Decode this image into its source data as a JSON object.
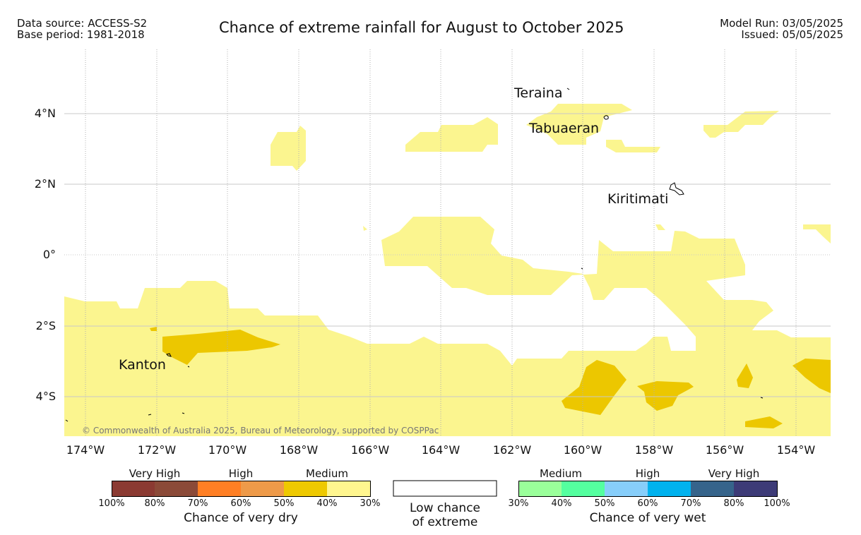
{
  "header": {
    "data_source": "Data source: ACCESS-S2",
    "base_period": "Base period: 1981-2018",
    "title": "Chance of extreme rainfall for August to October 2025",
    "model_run": "Model Run: 03/05/2025",
    "issued": "Issued: 05/05/2025"
  },
  "axes": {
    "y_labels": [
      "4°N",
      "2°N",
      "0°",
      "2°S",
      "4°S"
    ],
    "x_labels": [
      "174°W",
      "172°W",
      "170°W",
      "168°W",
      "166°W",
      "164°W",
      "162°W",
      "160°W",
      "158°W",
      "156°W",
      "154°W"
    ]
  },
  "places": {
    "teraina": "Teraina",
    "tabuaeran": "Tabuaeran",
    "kiritimati": "Kiritimati",
    "kanton": "Kanton"
  },
  "credit": "© Commonwealth of Australia 2025, Bureau of Meteorology, supported by COSPPac",
  "legend": {
    "dry": {
      "categories": [
        "Very High",
        "High",
        "Medium"
      ],
      "ticks": [
        "100%",
        "80%",
        "70%",
        "60%",
        "50%",
        "40%",
        "30%"
      ],
      "colors": [
        "#8b3a32",
        "#8b4a38",
        "#ff7f24",
        "#ee9a49",
        "#eec900",
        "#fff68f"
      ],
      "label": "Chance of very dry"
    },
    "low": {
      "label_line1": "Low chance",
      "label_line2": "of extreme"
    },
    "wet": {
      "categories": [
        "Medium",
        "High",
        "Very High"
      ],
      "ticks": [
        "30%",
        "40%",
        "50%",
        "60%",
        "70%",
        "80%",
        "100%"
      ],
      "colors": [
        "#9aff9a",
        "#54ff9f",
        "#87cefa",
        "#00b2ee",
        "#36648b",
        "#3d3b77"
      ],
      "label": "Chance of very wet"
    }
  },
  "colors": {
    "light_yellow": "#fbf58f",
    "gold": "#ecc700",
    "grid": "#b0b0b0"
  }
}
